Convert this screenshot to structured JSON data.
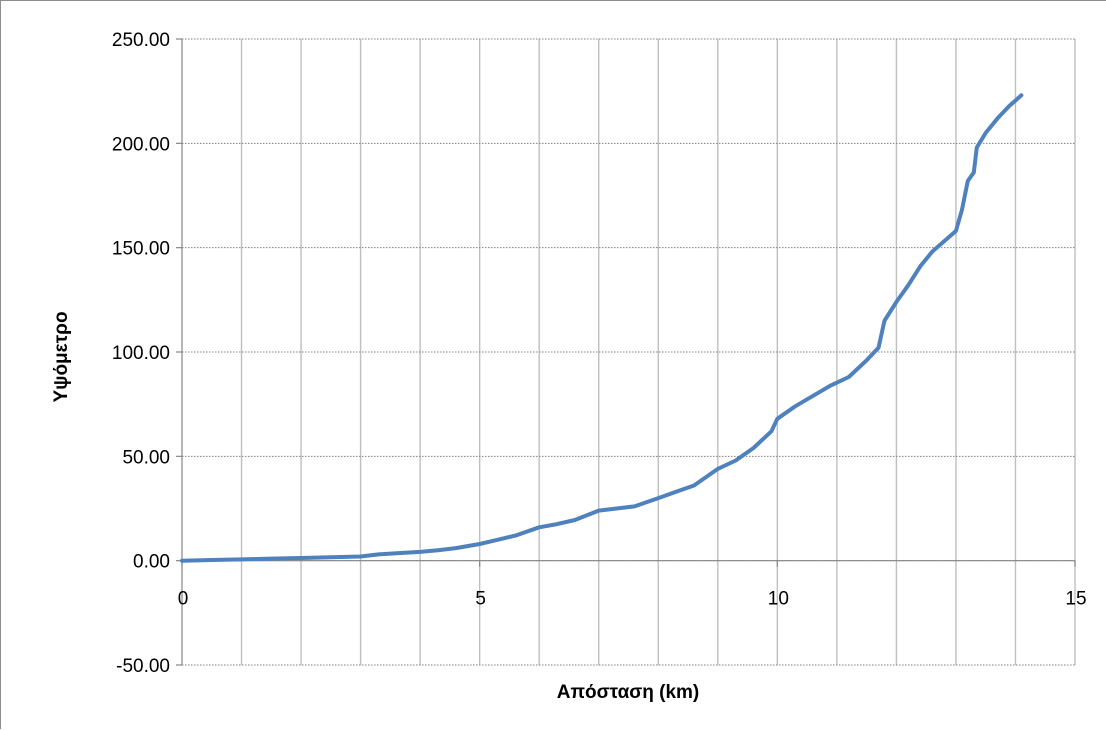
{
  "chart_data": {
    "type": "line",
    "title": "",
    "xlabel": "Απόσταση (km)",
    "ylabel": "Υψόμετρο",
    "xlim": [
      0,
      15
    ],
    "ylim": [
      -50,
      250
    ],
    "x_ticks": [
      0,
      5,
      10,
      15
    ],
    "x_tick_labels": [
      "0",
      "5",
      "10",
      "15"
    ],
    "x_minor_grid_step": 1,
    "y_ticks": [
      -50,
      0,
      50,
      100,
      150,
      200,
      250
    ],
    "y_tick_labels": [
      "-50.00",
      "0.00",
      "50.00",
      "100.00",
      "150.00",
      "200.00",
      "250.00"
    ],
    "grid": true,
    "legend": "none",
    "series": [
      {
        "color": "#4f81bd",
        "x": [
          0,
          0.5,
          1.0,
          1.5,
          2.0,
          2.5,
          3.0,
          3.3,
          3.6,
          4.0,
          4.3,
          4.6,
          5.0,
          5.3,
          5.6,
          6.0,
          6.3,
          6.6,
          7.0,
          7.3,
          7.6,
          8.0,
          8.3,
          8.6,
          9.0,
          9.3,
          9.6,
          9.9,
          10.0,
          10.3,
          10.6,
          10.9,
          11.2,
          11.5,
          11.7,
          11.8,
          12.0,
          12.2,
          12.4,
          12.6,
          12.8,
          13.0,
          13.1,
          13.2,
          13.3,
          13.35,
          13.5,
          13.7,
          13.9,
          14.1
        ],
        "y": [
          0,
          0.3,
          0.6,
          1.0,
          1.3,
          1.6,
          2.0,
          3.0,
          3.6,
          4.2,
          5.0,
          6.0,
          8.0,
          10.0,
          12.0,
          16.0,
          17.5,
          19.5,
          24.0,
          25.0,
          26.0,
          30.0,
          33.0,
          36.0,
          44.0,
          48.0,
          54.0,
          62.0,
          68.0,
          74.0,
          79.0,
          84.0,
          88.0,
          96.0,
          102.0,
          115.0,
          124.0,
          132.0,
          141.0,
          148.0,
          153.0,
          158.0,
          168.0,
          182.0,
          186.0,
          198.0,
          205.0,
          212.0,
          218.0,
          223.0
        ]
      }
    ]
  }
}
